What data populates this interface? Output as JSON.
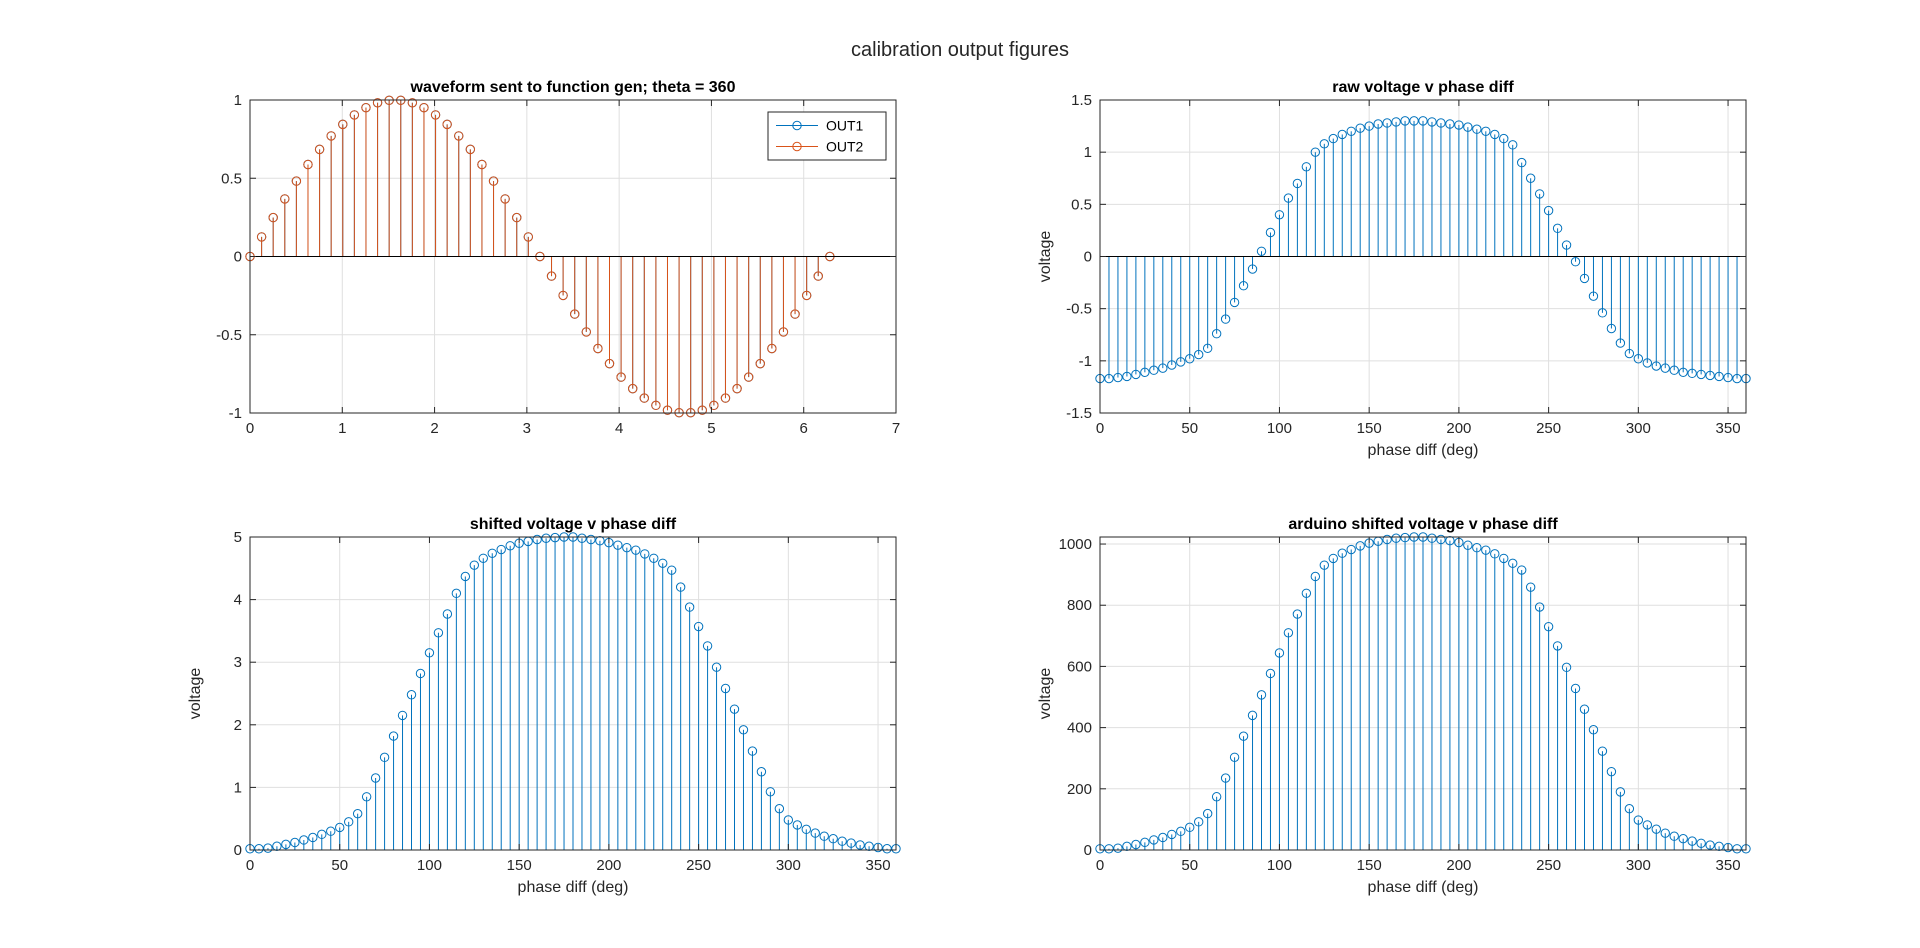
{
  "figure": {
    "title": "calibration output figures",
    "background": "#ffffff",
    "colors": {
      "series_blue": "#0072BD",
      "series_orange": "#D95319",
      "axis": "#262626",
      "grid": "#dfdfdf"
    }
  },
  "chart_data": [
    {
      "type": "stem",
      "title": "waveform sent to function gen; theta = 360",
      "xlabel": "",
      "ylabel": "",
      "xlim": [
        0,
        7
      ],
      "ylim": [
        -1,
        1
      ],
      "xticks": [
        0,
        1,
        2,
        3,
        4,
        5,
        6,
        7
      ],
      "xtick_labels": [
        "0",
        "1",
        "2",
        "3",
        "4",
        "5",
        "6",
        "7"
      ],
      "yticks": [
        -1,
        -0.5,
        0,
        0.5,
        1
      ],
      "ytick_labels": [
        "-1",
        "-0.5",
        "0",
        "0.5",
        "1"
      ],
      "grid": true,
      "legend": {
        "position": "top-right",
        "entries": [
          "OUT1",
          "OUT2"
        ]
      },
      "series": [
        {
          "name": "OUT1",
          "color": "#0072BD",
          "x": [
            0,
            0.1257,
            0.2513,
            0.377,
            0.5027,
            0.6283,
            0.754,
            0.8796,
            1.0053,
            1.131,
            1.2566,
            1.3823,
            1.508,
            1.6336,
            1.7593,
            1.885,
            2.0106,
            2.1363,
            2.2619,
            2.3876,
            2.5133,
            2.6389,
            2.7646,
            2.8903,
            3.0159,
            3.1416,
            3.2673,
            3.3929,
            3.5186,
            3.6442,
            3.7699,
            3.8956,
            4.0212,
            4.1469,
            4.2726,
            4.3982,
            4.5239,
            4.6496,
            4.7752,
            4.9009,
            5.0265,
            5.1522,
            5.2779,
            5.4035,
            5.5292,
            5.6549,
            5.7805,
            5.9062,
            6.0319,
            6.1575,
            6.2832
          ],
          "y": [
            0,
            0.1253,
            0.2487,
            0.3681,
            0.4818,
            0.5878,
            0.6845,
            0.7705,
            0.8443,
            0.9048,
            0.9511,
            0.9823,
            0.998,
            0.998,
            0.9823,
            0.9511,
            0.9048,
            0.8443,
            0.7705,
            0.6845,
            0.5878,
            0.4818,
            0.3681,
            0.2487,
            0.1253,
            0,
            -0.1253,
            -0.2487,
            -0.3681,
            -0.4818,
            -0.5878,
            -0.6845,
            -0.7705,
            -0.8443,
            -0.9048,
            -0.9511,
            -0.9823,
            -0.998,
            -0.998,
            -0.9823,
            -0.9511,
            -0.9048,
            -0.8443,
            -0.7705,
            -0.6845,
            -0.5878,
            -0.4818,
            -0.3681,
            -0.2487,
            -0.1253,
            0
          ]
        },
        {
          "name": "OUT2",
          "color": "#D95319",
          "x": [
            0,
            0.1257,
            0.2513,
            0.377,
            0.5027,
            0.6283,
            0.754,
            0.8796,
            1.0053,
            1.131,
            1.2566,
            1.3823,
            1.508,
            1.6336,
            1.7593,
            1.885,
            2.0106,
            2.1363,
            2.2619,
            2.3876,
            2.5133,
            2.6389,
            2.7646,
            2.8903,
            3.0159,
            3.1416,
            3.2673,
            3.3929,
            3.5186,
            3.6442,
            3.7699,
            3.8956,
            4.0212,
            4.1469,
            4.2726,
            4.3982,
            4.5239,
            4.6496,
            4.7752,
            4.9009,
            5.0265,
            5.1522,
            5.2779,
            5.4035,
            5.5292,
            5.6549,
            5.7805,
            5.9062,
            6.0319,
            6.1575,
            6.2832
          ],
          "y": [
            0,
            0.1253,
            0.2487,
            0.3681,
            0.4818,
            0.5878,
            0.6845,
            0.7705,
            0.8443,
            0.9048,
            0.9511,
            0.9823,
            0.998,
            0.998,
            0.9823,
            0.9511,
            0.9048,
            0.8443,
            0.7705,
            0.6845,
            0.5878,
            0.4818,
            0.3681,
            0.2487,
            0.1253,
            0,
            -0.1253,
            -0.2487,
            -0.3681,
            -0.4818,
            -0.5878,
            -0.6845,
            -0.7705,
            -0.8443,
            -0.9048,
            -0.9511,
            -0.9823,
            -0.998,
            -0.998,
            -0.9823,
            -0.9511,
            -0.9048,
            -0.8443,
            -0.7705,
            -0.6845,
            -0.5878,
            -0.4818,
            -0.3681,
            -0.2487,
            -0.1253,
            0
          ]
        }
      ]
    },
    {
      "type": "stem",
      "title": "raw voltage v phase diff",
      "xlabel": "phase diff (deg)",
      "ylabel": "voltage",
      "xlim": [
        0,
        360
      ],
      "ylim": [
        -1.5,
        1.5
      ],
      "xticks": [
        0,
        50,
        100,
        150,
        200,
        250,
        300,
        350
      ],
      "xtick_labels": [
        "0",
        "50",
        "100",
        "150",
        "200",
        "250",
        "300",
        "350"
      ],
      "yticks": [
        -1.5,
        -1,
        -0.5,
        0,
        0.5,
        1,
        1.5
      ],
      "ytick_labels": [
        "-1.5",
        "-1",
        "-0.5",
        "0",
        "0.5",
        "1",
        "1.5"
      ],
      "grid": true,
      "series": [
        {
          "color": "#0072BD",
          "x": [
            0,
            5,
            10,
            15,
            20,
            25,
            30,
            35,
            40,
            45,
            50,
            55,
            60,
            65,
            70,
            75,
            80,
            85,
            90,
            95,
            100,
            105,
            110,
            115,
            120,
            125,
            130,
            135,
            140,
            145,
            150,
            155,
            160,
            165,
            170,
            175,
            180,
            185,
            190,
            195,
            200,
            205,
            210,
            215,
            220,
            225,
            230,
            235,
            240,
            245,
            250,
            255,
            260,
            265,
            270,
            275,
            280,
            285,
            290,
            295,
            300,
            305,
            310,
            315,
            320,
            325,
            330,
            335,
            340,
            345,
            350,
            355,
            360
          ],
          "y": [
            -1.17,
            -1.17,
            -1.16,
            -1.15,
            -1.13,
            -1.11,
            -1.09,
            -1.07,
            -1.04,
            -1.01,
            -0.98,
            -0.94,
            -0.88,
            -0.74,
            -0.6,
            -0.44,
            -0.28,
            -0.12,
            0.05,
            0.23,
            0.4,
            0.56,
            0.7,
            0.86,
            1.0,
            1.08,
            1.13,
            1.17,
            1.2,
            1.23,
            1.25,
            1.27,
            1.28,
            1.29,
            1.3,
            1.3,
            1.3,
            1.29,
            1.28,
            1.27,
            1.26,
            1.24,
            1.22,
            1.2,
            1.17,
            1.13,
            1.07,
            0.9,
            0.75,
            0.6,
            0.44,
            0.27,
            0.11,
            -0.05,
            -0.21,
            -0.38,
            -0.54,
            -0.69,
            -0.83,
            -0.93,
            -0.98,
            -1.02,
            -1.05,
            -1.07,
            -1.09,
            -1.11,
            -1.12,
            -1.13,
            -1.14,
            -1.15,
            -1.16,
            -1.17,
            -1.17
          ]
        }
      ]
    },
    {
      "type": "stem",
      "title": "shifted voltage v phase diff",
      "xlabel": "phase diff (deg)",
      "ylabel": "voltage",
      "xlim": [
        0,
        360
      ],
      "ylim": [
        0,
        5
      ],
      "xticks": [
        0,
        50,
        100,
        150,
        200,
        250,
        300,
        350
      ],
      "xtick_labels": [
        "0",
        "50",
        "100",
        "150",
        "200",
        "250",
        "300",
        "350"
      ],
      "yticks": [
        0,
        1,
        2,
        3,
        4,
        5
      ],
      "ytick_labels": [
        "0",
        "1",
        "2",
        "3",
        "4",
        "5"
      ],
      "grid": true,
      "series": [
        {
          "color": "#0072BD",
          "x": [
            0,
            5,
            10,
            15,
            20,
            25,
            30,
            35,
            40,
            45,
            50,
            55,
            60,
            65,
            70,
            75,
            80,
            85,
            90,
            95,
            100,
            105,
            110,
            115,
            120,
            125,
            130,
            135,
            140,
            145,
            150,
            155,
            160,
            165,
            170,
            175,
            180,
            185,
            190,
            195,
            200,
            205,
            210,
            215,
            220,
            225,
            230,
            235,
            240,
            245,
            250,
            255,
            260,
            265,
            270,
            275,
            280,
            285,
            290,
            295,
            300,
            305,
            310,
            315,
            320,
            325,
            330,
            335,
            340,
            345,
            350,
            355,
            360
          ],
          "y": [
            0.02,
            0.02,
            0.03,
            0.06,
            0.09,
            0.12,
            0.16,
            0.2,
            0.25,
            0.3,
            0.36,
            0.45,
            0.58,
            0.85,
            1.15,
            1.48,
            1.82,
            2.15,
            2.48,
            2.82,
            3.15,
            3.47,
            3.77,
            4.1,
            4.37,
            4.55,
            4.66,
            4.74,
            4.8,
            4.86,
            4.9,
            4.93,
            4.96,
            4.98,
            4.99,
            5.0,
            5.0,
            4.98,
            4.96,
            4.94,
            4.91,
            4.87,
            4.83,
            4.79,
            4.73,
            4.66,
            4.58,
            4.47,
            4.2,
            3.88,
            3.57,
            3.26,
            2.92,
            2.58,
            2.25,
            1.92,
            1.58,
            1.25,
            0.93,
            0.66,
            0.48,
            0.4,
            0.33,
            0.27,
            0.22,
            0.18,
            0.14,
            0.11,
            0.08,
            0.06,
            0.04,
            0.02,
            0.02
          ]
        }
      ]
    },
    {
      "type": "stem",
      "title": "arduino shifted voltage v phase diff",
      "xlabel": "phase diff (deg)",
      "ylabel": "voltage",
      "xlim": [
        0,
        360
      ],
      "ylim": [
        0,
        1023
      ],
      "xticks": [
        0,
        50,
        100,
        150,
        200,
        250,
        300,
        350
      ],
      "xtick_labels": [
        "0",
        "50",
        "100",
        "150",
        "200",
        "250",
        "300",
        "350"
      ],
      "yticks": [
        0,
        200,
        400,
        600,
        800,
        1000
      ],
      "ytick_labels": [
        "0",
        "200",
        "400",
        "600",
        "800",
        "1000"
      ],
      "grid": true,
      "series": [
        {
          "color": "#0072BD",
          "x": [
            0,
            5,
            10,
            15,
            20,
            25,
            30,
            35,
            40,
            45,
            50,
            55,
            60,
            65,
            70,
            75,
            80,
            85,
            90,
            95,
            100,
            105,
            110,
            115,
            120,
            125,
            130,
            135,
            140,
            145,
            150,
            155,
            160,
            165,
            170,
            175,
            180,
            185,
            190,
            195,
            200,
            205,
            210,
            215,
            220,
            225,
            230,
            235,
            240,
            245,
            250,
            255,
            260,
            265,
            270,
            275,
            280,
            285,
            290,
            295,
            300,
            305,
            310,
            315,
            320,
            325,
            330,
            335,
            340,
            345,
            350,
            355,
            360
          ],
          "y": [
            4,
            4,
            6,
            12,
            18,
            25,
            33,
            41,
            51,
            61,
            74,
            92,
            119,
            174,
            235,
            303,
            372,
            440,
            507,
            577,
            644,
            710,
            771,
            839,
            894,
            931,
            953,
            970,
            982,
            994,
            1003,
            1009,
            1015,
            1019,
            1021,
            1023,
            1023,
            1019,
            1015,
            1011,
            1005,
            996,
            988,
            980,
            968,
            953,
            937,
            915,
            859,
            794,
            730,
            667,
            597,
            528,
            460,
            393,
            323,
            256,
            190,
            135,
            98,
            82,
            68,
            55,
            45,
            37,
            29,
            22,
            16,
            12,
            8,
            4,
            4
          ]
        }
      ]
    }
  ]
}
